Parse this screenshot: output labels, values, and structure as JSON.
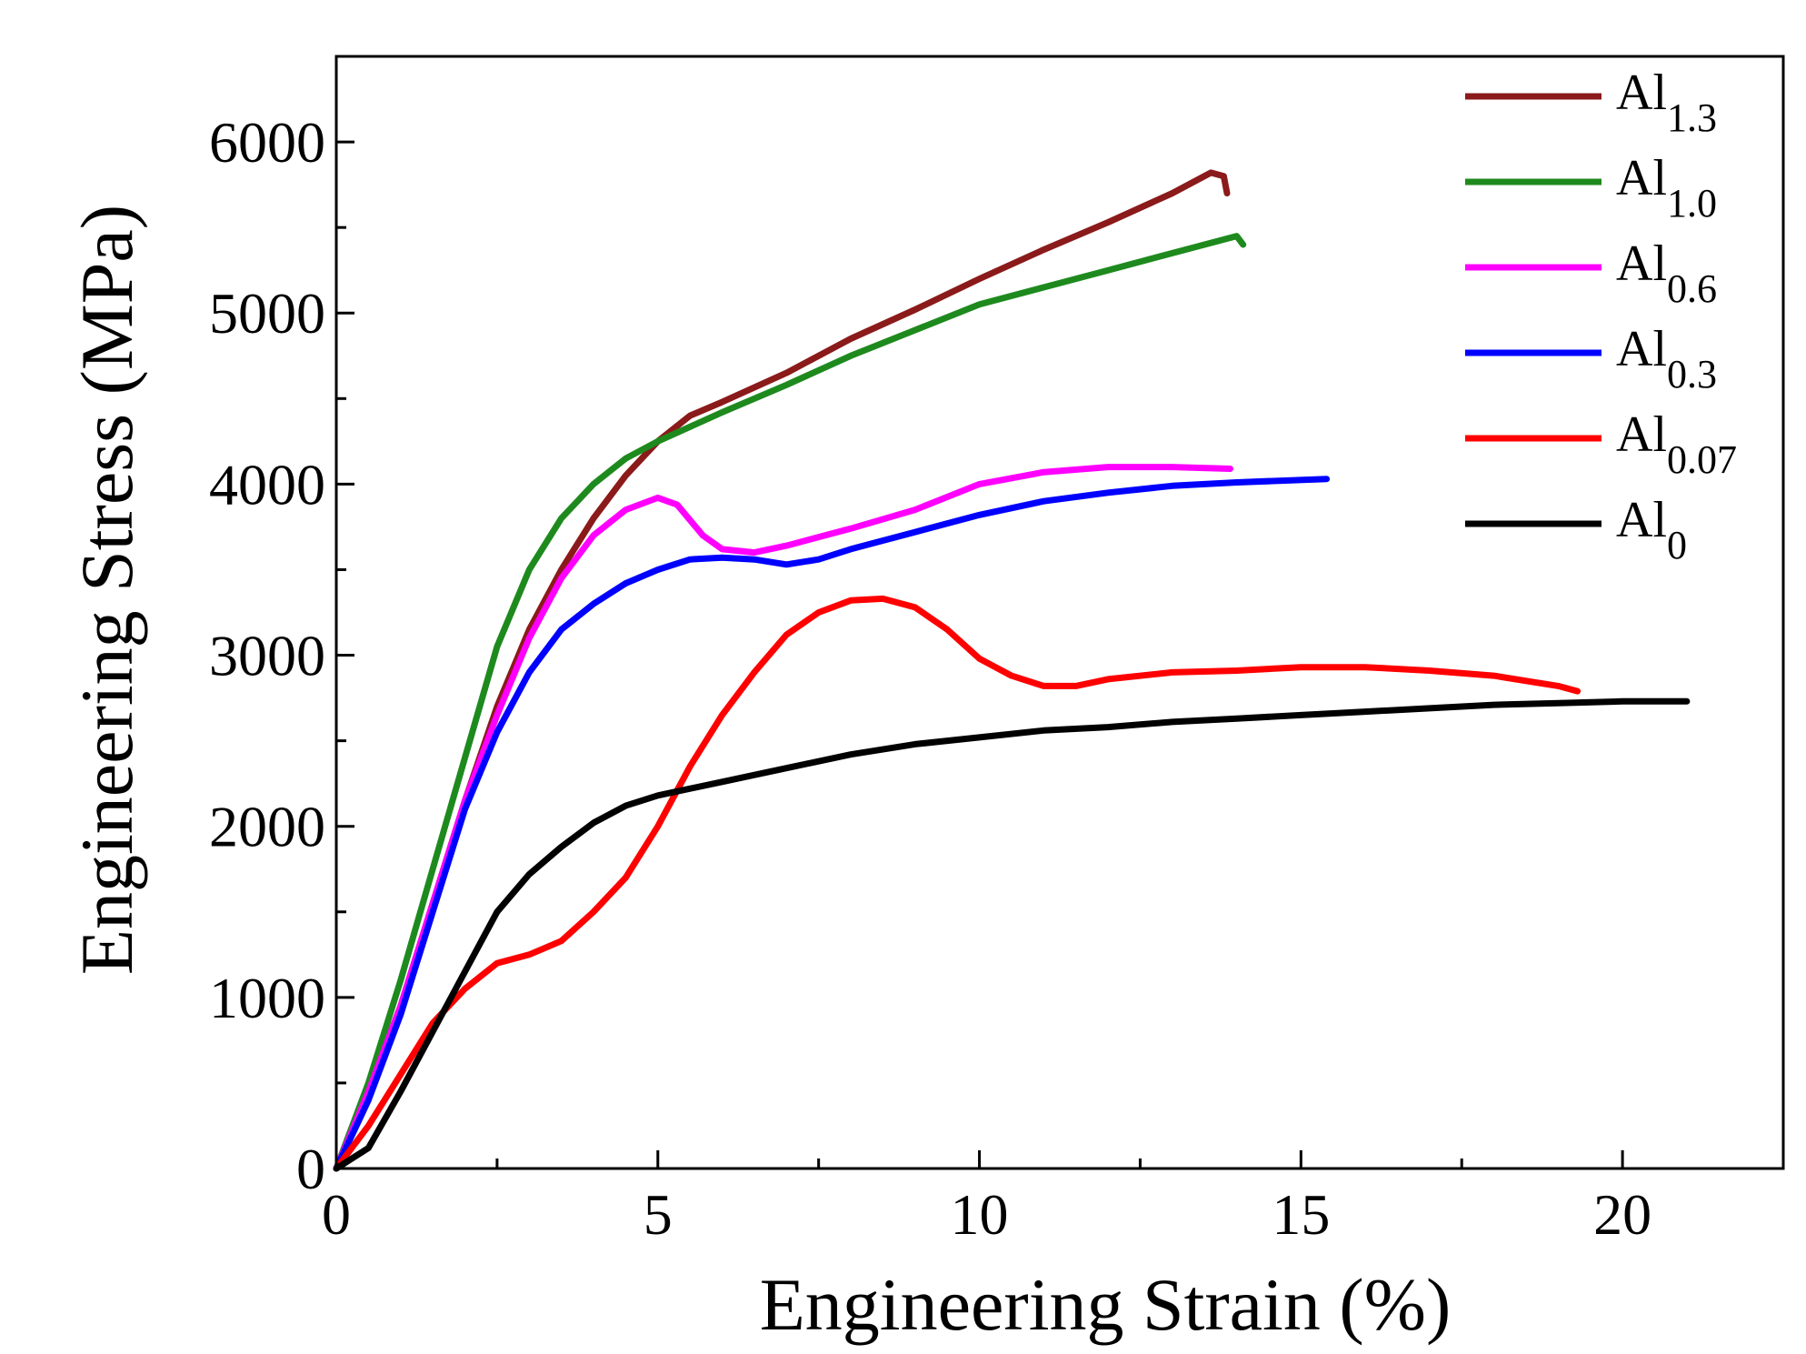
{
  "chart_data": {
    "type": "line",
    "title": "",
    "xlabel": "Engineering Strain (%)",
    "ylabel": "Engineering Stress (MPa)",
    "xlim": [
      0,
      22.5
    ],
    "ylim": [
      0,
      6500
    ],
    "x_ticks": [
      0,
      5,
      10,
      15,
      20
    ],
    "x_tick_labels": [
      "0",
      "5",
      "10",
      "15",
      "20"
    ],
    "y_ticks": [
      0,
      1000,
      2000,
      3000,
      4000,
      5000,
      6000
    ],
    "y_tick_labels": [
      "0",
      "1000",
      "2000",
      "3000",
      "4000",
      "5000",
      "6000"
    ],
    "grid": false,
    "legend_position": "top-right",
    "series": [
      {
        "name": "Al1.3",
        "label_base": "Al",
        "label_sub": "1.3",
        "color": "#8b1a1a",
        "points": [
          [
            0,
            0
          ],
          [
            0.5,
            450
          ],
          [
            1,
            950
          ],
          [
            1.5,
            1550
          ],
          [
            2,
            2150
          ],
          [
            2.5,
            2700
          ],
          [
            3,
            3150
          ],
          [
            3.5,
            3500
          ],
          [
            4,
            3800
          ],
          [
            4.5,
            4050
          ],
          [
            5,
            4250
          ],
          [
            5.5,
            4400
          ],
          [
            6,
            4480
          ],
          [
            7,
            4650
          ],
          [
            8,
            4850
          ],
          [
            9,
            5020
          ],
          [
            10,
            5200
          ],
          [
            11,
            5370
          ],
          [
            12,
            5530
          ],
          [
            13,
            5700
          ],
          [
            13.6,
            5820
          ],
          [
            13.8,
            5800
          ],
          [
            13.85,
            5700
          ]
        ]
      },
      {
        "name": "Al1.0",
        "label_base": "Al",
        "label_sub": "1.0",
        "color": "#1e8a1e",
        "points": [
          [
            0,
            0
          ],
          [
            0.5,
            500
          ],
          [
            1,
            1100
          ],
          [
            1.5,
            1750
          ],
          [
            2,
            2400
          ],
          [
            2.5,
            3050
          ],
          [
            3,
            3500
          ],
          [
            3.5,
            3800
          ],
          [
            4,
            4000
          ],
          [
            4.5,
            4150
          ],
          [
            5,
            4250
          ],
          [
            6,
            4420
          ],
          [
            7,
            4580
          ],
          [
            8,
            4750
          ],
          [
            9,
            4900
          ],
          [
            10,
            5050
          ],
          [
            11,
            5150
          ],
          [
            12,
            5250
          ],
          [
            13,
            5350
          ],
          [
            14,
            5450
          ],
          [
            14.1,
            5400
          ]
        ]
      },
      {
        "name": "Al0.6",
        "label_base": "Al",
        "label_sub": "0.6",
        "color": "#ff00ff",
        "points": [
          [
            0,
            0
          ],
          [
            0.5,
            450
          ],
          [
            1,
            950
          ],
          [
            1.5,
            1550
          ],
          [
            2,
            2150
          ],
          [
            2.5,
            2650
          ],
          [
            3,
            3100
          ],
          [
            3.5,
            3450
          ],
          [
            4,
            3700
          ],
          [
            4.5,
            3850
          ],
          [
            5,
            3920
          ],
          [
            5.3,
            3880
          ],
          [
            5.7,
            3700
          ],
          [
            6,
            3620
          ],
          [
            6.5,
            3600
          ],
          [
            7,
            3640
          ],
          [
            8,
            3740
          ],
          [
            9,
            3850
          ],
          [
            10,
            4000
          ],
          [
            11,
            4070
          ],
          [
            12,
            4100
          ],
          [
            13,
            4100
          ],
          [
            13.9,
            4090
          ]
        ]
      },
      {
        "name": "Al0.3",
        "label_base": "Al",
        "label_sub": "0.3",
        "color": "#0000ff",
        "points": [
          [
            0,
            0
          ],
          [
            0.5,
            400
          ],
          [
            1,
            900
          ],
          [
            1.5,
            1500
          ],
          [
            2,
            2100
          ],
          [
            2.5,
            2550
          ],
          [
            3,
            2900
          ],
          [
            3.5,
            3150
          ],
          [
            4,
            3300
          ],
          [
            4.5,
            3420
          ],
          [
            5,
            3500
          ],
          [
            5.5,
            3560
          ],
          [
            6,
            3570
          ],
          [
            6.5,
            3560
          ],
          [
            7,
            3530
          ],
          [
            7.5,
            3560
          ],
          [
            8,
            3620
          ],
          [
            9,
            3720
          ],
          [
            10,
            3820
          ],
          [
            11,
            3900
          ],
          [
            12,
            3950
          ],
          [
            13,
            3990
          ],
          [
            14,
            4010
          ],
          [
            15.4,
            4030
          ]
        ]
      },
      {
        "name": "Al0.07",
        "label_base": "Al",
        "label_sub": "0.07",
        "color": "#ff0000",
        "points": [
          [
            0,
            0
          ],
          [
            0.5,
            250
          ],
          [
            1,
            550
          ],
          [
            1.5,
            850
          ],
          [
            2,
            1050
          ],
          [
            2.5,
            1200
          ],
          [
            3,
            1250
          ],
          [
            3.5,
            1330
          ],
          [
            4,
            1500
          ],
          [
            4.5,
            1700
          ],
          [
            5,
            2000
          ],
          [
            5.5,
            2350
          ],
          [
            6,
            2650
          ],
          [
            6.5,
            2900
          ],
          [
            7,
            3120
          ],
          [
            7.5,
            3250
          ],
          [
            8,
            3320
          ],
          [
            8.5,
            3330
          ],
          [
            9,
            3280
          ],
          [
            9.5,
            3150
          ],
          [
            10,
            2980
          ],
          [
            10.5,
            2880
          ],
          [
            11,
            2820
          ],
          [
            11.5,
            2820
          ],
          [
            12,
            2860
          ],
          [
            13,
            2900
          ],
          [
            14,
            2910
          ],
          [
            15,
            2930
          ],
          [
            16,
            2930
          ],
          [
            17,
            2910
          ],
          [
            18,
            2880
          ],
          [
            19,
            2820
          ],
          [
            19.3,
            2790
          ]
        ]
      },
      {
        "name": "Al0",
        "label_base": "Al",
        "label_sub": "0",
        "color": "#000000",
        "points": [
          [
            0,
            0
          ],
          [
            0.5,
            120
          ],
          [
            1,
            450
          ],
          [
            1.5,
            800
          ],
          [
            2,
            1150
          ],
          [
            2.5,
            1500
          ],
          [
            3,
            1720
          ],
          [
            3.5,
            1880
          ],
          [
            4,
            2020
          ],
          [
            4.5,
            2120
          ],
          [
            5,
            2180
          ],
          [
            6,
            2260
          ],
          [
            7,
            2340
          ],
          [
            8,
            2420
          ],
          [
            9,
            2480
          ],
          [
            10,
            2520
          ],
          [
            11,
            2560
          ],
          [
            12,
            2580
          ],
          [
            13,
            2610
          ],
          [
            14,
            2630
          ],
          [
            15,
            2650
          ],
          [
            16,
            2670
          ],
          [
            17,
            2690
          ],
          [
            18,
            2710
          ],
          [
            19,
            2720
          ],
          [
            20,
            2730
          ],
          [
            21,
            2730
          ]
        ]
      }
    ]
  }
}
